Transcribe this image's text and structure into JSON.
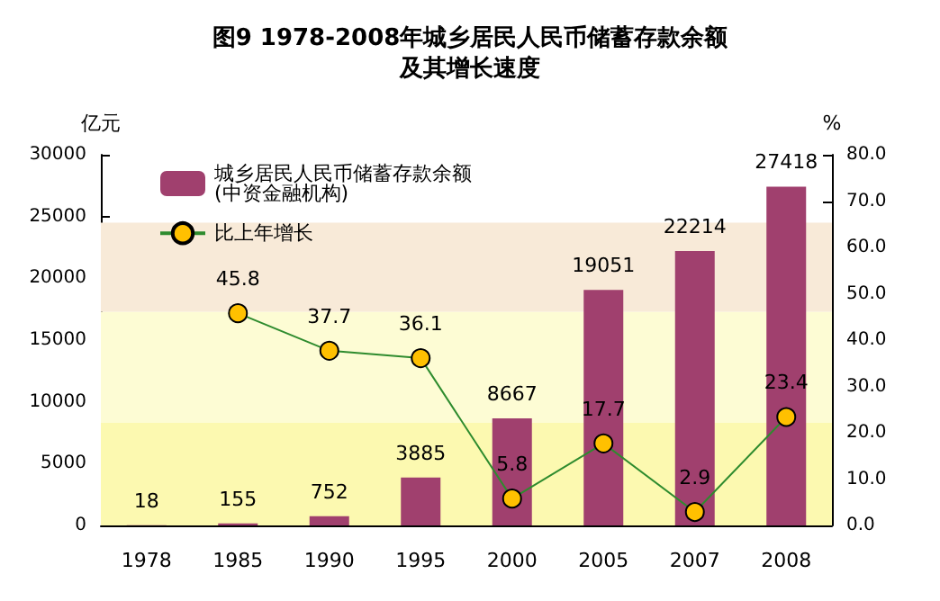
{
  "chart_data": {
    "type": "bar",
    "title": "图9 1978-2008年城乡居民人民币储蓄存款余额",
    "subtitle": "及其增长速度",
    "ylabel": "亿元",
    "y2label": "%",
    "categories": [
      "1978",
      "1985",
      "1990",
      "1995",
      "2000",
      "2005",
      "2007",
      "2008"
    ],
    "series": [
      {
        "name": "城乡居民人民币储蓄存款余额\n(中资金融机构)",
        "color": "#a0406e",
        "values": [
          18,
          155,
          752,
          3885,
          8667,
          19051,
          22214,
          27418
        ]
      },
      {
        "name": "比上年增长",
        "type": "line",
        "axis": "y2",
        "color": "#2e8b2e",
        "values": [
          null,
          45.8,
          37.7,
          36.1,
          5.8,
          17.7,
          2.9,
          23.4
        ]
      }
    ],
    "ylim": [
      0,
      30000
    ],
    "yticks": [
      0,
      5000,
      10000,
      15000,
      20000,
      25000,
      30000
    ],
    "y2lim": [
      0,
      80
    ],
    "y2ticks": [
      {
        "value": 0,
        "label": "0.0"
      },
      {
        "value": 10,
        "label": "10.0"
      },
      {
        "value": 20,
        "label": "20.0"
      },
      {
        "value": 30,
        "label": "30.0"
      },
      {
        "value": 40,
        "label": "40.0"
      },
      {
        "value": 50,
        "label": "50.0"
      },
      {
        "value": 60,
        "label": "60.0"
      },
      {
        "value": 70,
        "label": "70.0"
      },
      {
        "value": 80,
        "label": "80.0"
      }
    ],
    "bands": [
      {
        "axis": "y",
        "from": 0,
        "to": 8300,
        "color": "#fcf9b0"
      },
      {
        "axis": "y",
        "from": 8300,
        "to": 17300,
        "color": "#fdfcd4"
      },
      {
        "axis": "y",
        "from": 17300,
        "to": 24500,
        "color": "#f8ead8"
      }
    ],
    "data_labels": true,
    "marker": "circle",
    "legend": "top left",
    "grid": false
  }
}
